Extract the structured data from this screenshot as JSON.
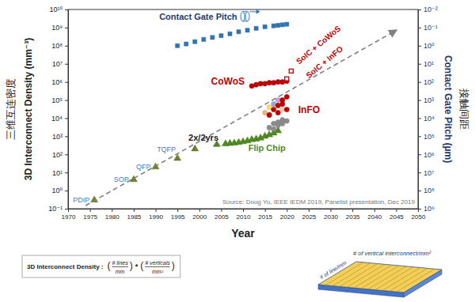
{
  "chart_data": {
    "type": "scatter",
    "xlabel": "Year",
    "ylabel": "3D Interconnect Density (mm⁻³)",
    "ylabel_cn": "三维互连密度",
    "y2label": "Contact Gate Pitch (µm)",
    "y2label_cn": "接触间距",
    "log": "y",
    "grid": false,
    "xlim": [
      1970,
      2050
    ],
    "xticks": [
      1970,
      1975,
      1980,
      1985,
      1990,
      1995,
      2000,
      2005,
      2010,
      2015,
      2020,
      2025,
      2030,
      2035,
      2040,
      2045,
      2050
    ],
    "ylim": [
      0.1,
      10000000000
    ],
    "yticks": [
      {
        "value": 0.1,
        "label": "10⁻¹"
      },
      {
        "value": 1,
        "label": "10⁰"
      },
      {
        "value": 10,
        "label": "10¹"
      },
      {
        "value": 100,
        "label": "10²"
      },
      {
        "value": 1000,
        "label": "10³"
      },
      {
        "value": 10000,
        "label": "10⁴"
      },
      {
        "value": 100000,
        "label": "10⁵"
      },
      {
        "value": 1000000,
        "label": "10⁶"
      },
      {
        "value": 10000000,
        "label": "10⁷"
      },
      {
        "value": 100000000,
        "label": "10⁸"
      },
      {
        "value": 1000000000,
        "label": "10⁹"
      },
      {
        "value": 10000000000,
        "label": "10¹⁰"
      }
    ],
    "y2lim": [
      1000000000,
      0.01
    ],
    "y2ticks": [
      {
        "value": 0.01,
        "label": "10⁻²"
      },
      {
        "value": 0.1,
        "label": "10⁻¹"
      },
      {
        "value": 1,
        "label": "10⁰"
      },
      {
        "value": 10,
        "label": "10¹"
      },
      {
        "value": 100,
        "label": "10²"
      },
      {
        "value": 1000,
        "label": "10³"
      },
      {
        "value": 10000,
        "label": "10⁴"
      },
      {
        "value": 100000,
        "label": "10⁵"
      },
      {
        "value": 1000000,
        "label": "10⁶"
      },
      {
        "value": 10000000,
        "label": "10⁷"
      },
      {
        "value": 100000000,
        "label": "10⁸"
      },
      {
        "value": 1000000000,
        "label": "10⁹"
      }
    ],
    "series": [
      {
        "name": "PDIP",
        "marker": "triangle",
        "color": "#6f7f2a",
        "x": [
          1976
        ],
        "values": [
          0.3
        ]
      },
      {
        "name": "SOP",
        "marker": "triangle",
        "color": "#6f7f2a",
        "x": [
          1985
        ],
        "values": [
          4
        ]
      },
      {
        "name": "QFP",
        "marker": "triangle",
        "color": "#6f7f2a",
        "x": [
          1990
        ],
        "values": [
          20
        ]
      },
      {
        "name": "TQFP",
        "marker": "triangle",
        "color": "#6f7f2a",
        "x": [
          1995,
          1999
        ],
        "values": [
          60,
          200
        ]
      },
      {
        "name": "Flip Chip",
        "marker": "triangle",
        "color": "#4e8a1e",
        "x": [
          2004,
          2006,
          2007,
          2008,
          2009,
          2010,
          2011,
          2012,
          2013,
          2014,
          2015,
          2016,
          2017,
          2018
        ],
        "values": [
          350,
          380,
          400,
          420,
          450,
          500,
          550,
          650,
          700,
          800,
          1000,
          1200,
          1500,
          2000
        ]
      },
      {
        "marker": "circle",
        "color": "#8c8c8c",
        "x": [
          2016,
          2017,
          2017,
          2018,
          2018,
          2019,
          2019,
          2020
        ],
        "values": [
          3000,
          5000,
          2500,
          6000,
          4000,
          8000,
          5000,
          7000
        ]
      },
      {
        "marker": "circle",
        "colors": [
          "#f4b183",
          "#ffd966",
          "#a9d18e",
          "#8faadc",
          "#c9a0dc",
          "#f8cbad"
        ],
        "x": [
          2015,
          2016,
          2016,
          2017,
          2018,
          2019
        ],
        "values": [
          20000,
          40000,
          15000,
          60000,
          100000,
          30000
        ]
      },
      {
        "name": "InFO",
        "marker": "circle",
        "color": "#c00000",
        "x": [
          2016,
          2017,
          2018,
          2018,
          2019,
          2019,
          2020,
          2020
        ],
        "values": [
          15000,
          30000,
          50000,
          20000,
          100000,
          60000,
          30000,
          150000
        ]
      },
      {
        "name": "CoWoS",
        "marker": "circle",
        "color": "#c00000",
        "x": [
          2012,
          2013,
          2014,
          2015,
          2016,
          2017,
          2018,
          2019,
          2020
        ],
        "values": [
          600000,
          700000,
          800000,
          800000,
          900000,
          900000,
          1000000,
          1000000,
          1100000
        ]
      },
      {
        "name": "SoIC + InFO",
        "marker": "open-square",
        "color": "#c00000",
        "x": [
          2020
        ],
        "values": [
          1500000
        ]
      },
      {
        "name": "SoIC + CoWoS",
        "marker": "open-square",
        "color": "#c00000",
        "x": [
          2021
        ],
        "values": [
          4000000
        ]
      },
      {
        "name": "2x/2yrs",
        "type": "line",
        "line_style": "dashed",
        "color": "#808080",
        "x": [
          1974,
          2045
        ],
        "values": [
          0.15,
          700000000
        ]
      },
      {
        "name": "Contact Gate Pitch",
        "axis": "y2",
        "marker": "square",
        "color": "#2e75b6",
        "x": [
          1995,
          1997,
          1999,
          2001,
          2003,
          2005,
          2007,
          2009,
          2011,
          2013,
          2015,
          2017,
          2018,
          2019,
          2020
        ],
        "values": [
          1.0,
          0.8,
          0.6,
          0.45,
          0.35,
          0.28,
          0.22,
          0.17,
          0.14,
          0.11,
          0.09,
          0.08,
          0.075,
          0.07,
          0.065
        ]
      }
    ],
    "annotations": {
      "source": "Source: Doug Yu, IEEE IEDM 2019, Panelist presentation, Dec 2019",
      "formula": {
        "lead": "3D Interconnect Density :",
        "brackets": [
          "(",
          ")"
        ],
        "operator": "*",
        "terms": [
          {
            "numerator": "# lines",
            "denominator": "mm"
          },
          {
            "numerator": "# verticals",
            "denominator": "mm²"
          }
        ]
      },
      "diagram": {
        "line_label": "# of line/mm",
        "vertical_label": "# of vertical interconnect/mm²"
      }
    }
  }
}
